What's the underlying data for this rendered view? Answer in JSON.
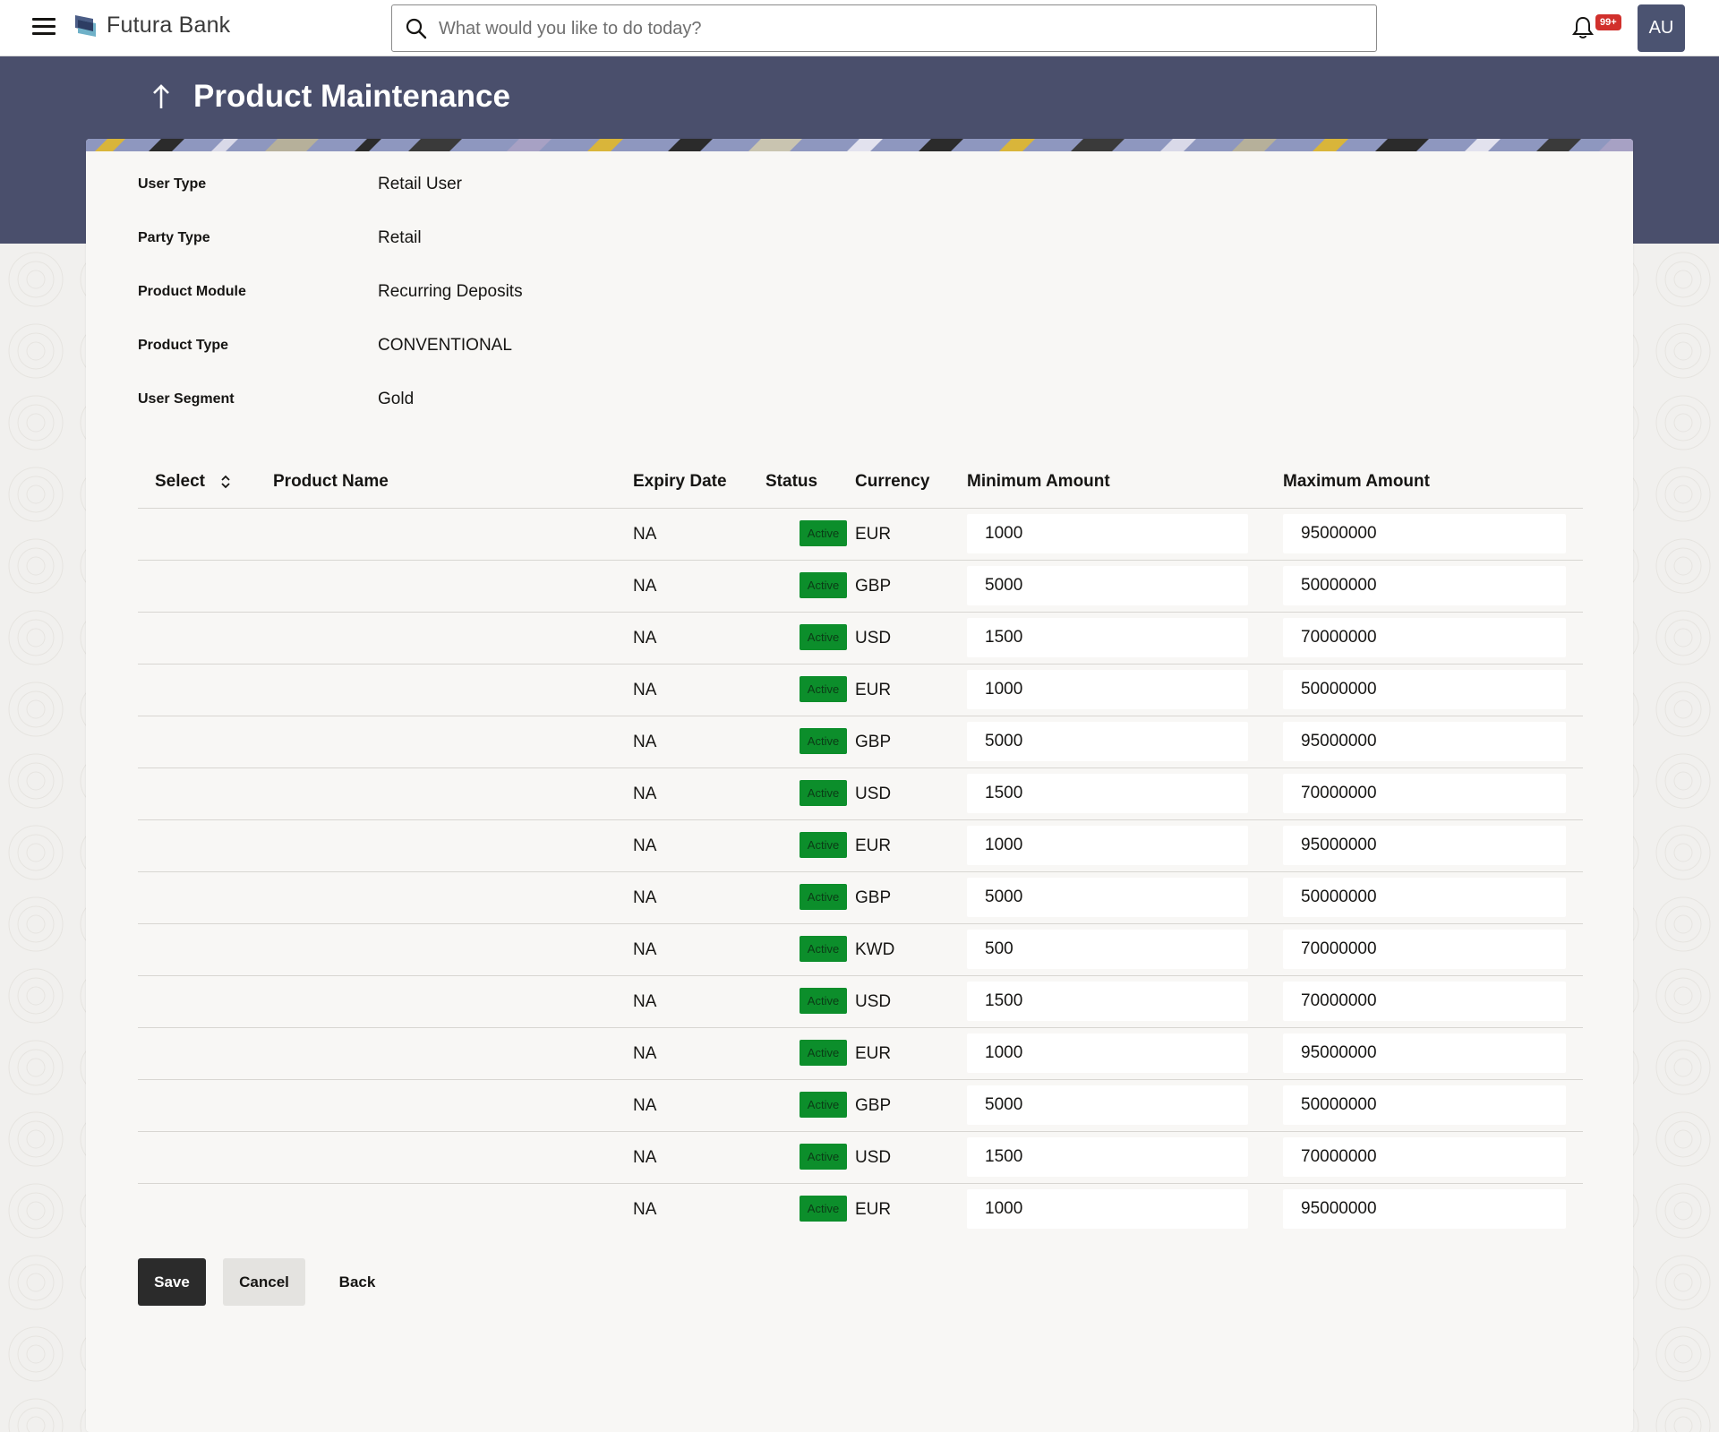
{
  "header": {
    "brand": "Futura Bank",
    "search_placeholder": "What would you like to do today?",
    "notification_count": "99+",
    "user_initials": "AU"
  },
  "page": {
    "title": "Product Maintenance"
  },
  "details": [
    {
      "label": "User Type",
      "value": "Retail User"
    },
    {
      "label": "Party Type",
      "value": "Retail"
    },
    {
      "label": "Product Module",
      "value": "Recurring Deposits"
    },
    {
      "label": "Product Type",
      "value": "CONVENTIONAL"
    },
    {
      "label": "User Segment",
      "value": "Gold"
    }
  ],
  "table": {
    "columns": {
      "select": "Select",
      "product_name": "Product Name",
      "expiry_date": "Expiry Date",
      "status": "Status",
      "currency": "Currency",
      "min_amount": "Minimum Amount",
      "max_amount": "Maximum Amount"
    },
    "rows": [
      {
        "expiry": "NA",
        "status": "Active",
        "currency": "EUR",
        "min": "1000",
        "max": "95000000"
      },
      {
        "expiry": "NA",
        "status": "Active",
        "currency": "GBP",
        "min": "5000",
        "max": "50000000"
      },
      {
        "expiry": "NA",
        "status": "Active",
        "currency": "USD",
        "min": "1500",
        "max": "70000000"
      },
      {
        "expiry": "NA",
        "status": "Active",
        "currency": "EUR",
        "min": "1000",
        "max": "50000000"
      },
      {
        "expiry": "NA",
        "status": "Active",
        "currency": "GBP",
        "min": "5000",
        "max": "95000000"
      },
      {
        "expiry": "NA",
        "status": "Active",
        "currency": "USD",
        "min": "1500",
        "max": "70000000"
      },
      {
        "expiry": "NA",
        "status": "Active",
        "currency": "EUR",
        "min": "1000",
        "max": "95000000"
      },
      {
        "expiry": "NA",
        "status": "Active",
        "currency": "GBP",
        "min": "5000",
        "max": "50000000"
      },
      {
        "expiry": "NA",
        "status": "Active",
        "currency": "KWD",
        "min": "500",
        "max": "70000000"
      },
      {
        "expiry": "NA",
        "status": "Active",
        "currency": "USD",
        "min": "1500",
        "max": "70000000"
      },
      {
        "expiry": "NA",
        "status": "Active",
        "currency": "EUR",
        "min": "1000",
        "max": "95000000"
      },
      {
        "expiry": "NA",
        "status": "Active",
        "currency": "GBP",
        "min": "5000",
        "max": "50000000"
      },
      {
        "expiry": "NA",
        "status": "Active",
        "currency": "USD",
        "min": "1500",
        "max": "70000000"
      },
      {
        "expiry": "NA",
        "status": "Active",
        "currency": "EUR",
        "min": "1000",
        "max": "95000000"
      }
    ]
  },
  "actions": {
    "save": "Save",
    "cancel": "Cancel",
    "back": "Back"
  },
  "colors": {
    "banner": "#4a4f6c",
    "status_active": "#0c8e2b",
    "primary_button": "#2b2b2b",
    "notification_badge": "#d1302c"
  },
  "icons": [
    "hamburger-menu-icon",
    "bank-logo-icon",
    "search-icon",
    "bell-icon",
    "back-arrow-icon",
    "sort-icon"
  ]
}
